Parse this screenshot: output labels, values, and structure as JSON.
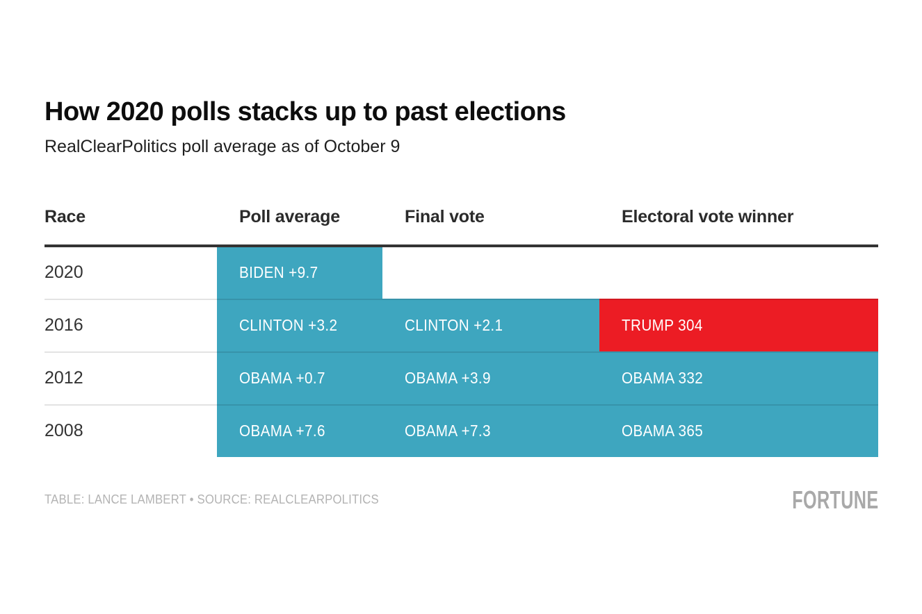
{
  "title": "How 2020 polls stacks up to past elections",
  "subtitle": "RealClearPolitics poll average as of October 9",
  "colors": {
    "teal": "#3EA6BF",
    "red": "#EC1C24",
    "header_rule": "#333333"
  },
  "chart_data": {
    "type": "table",
    "title": "How 2020 polls stacks up to past elections",
    "subtitle": "RealClearPolitics poll average as of October 9",
    "columns": [
      "Race",
      "Poll average",
      "Final vote",
      "Electoral vote winner"
    ],
    "rows": [
      {
        "race": "2020",
        "cells": [
          {
            "text": "BIDEN +9.7",
            "fill": "teal"
          },
          {
            "text": "",
            "fill": "none"
          },
          {
            "text": "",
            "fill": "none"
          }
        ]
      },
      {
        "race": "2016",
        "cells": [
          {
            "text": "CLINTON +3.2",
            "fill": "teal"
          },
          {
            "text": "CLINTON +2.1",
            "fill": "teal"
          },
          {
            "text": "TRUMP 304",
            "fill": "red"
          }
        ]
      },
      {
        "race": "2012",
        "cells": [
          {
            "text": "OBAMA +0.7",
            "fill": "teal"
          },
          {
            "text": "OBAMA +3.9",
            "fill": "teal"
          },
          {
            "text": "OBAMA 332",
            "fill": "teal"
          }
        ]
      },
      {
        "race": "2008",
        "cells": [
          {
            "text": "OBAMA +7.6",
            "fill": "teal"
          },
          {
            "text": "OBAMA +7.3",
            "fill": "teal"
          },
          {
            "text": "OBAMA 365",
            "fill": "teal"
          }
        ]
      }
    ]
  },
  "footer": {
    "credit": "TABLE: LANCE LAMBERT • SOURCE: REALCLEARPOLITICS",
    "brand": "FORTUNE"
  }
}
